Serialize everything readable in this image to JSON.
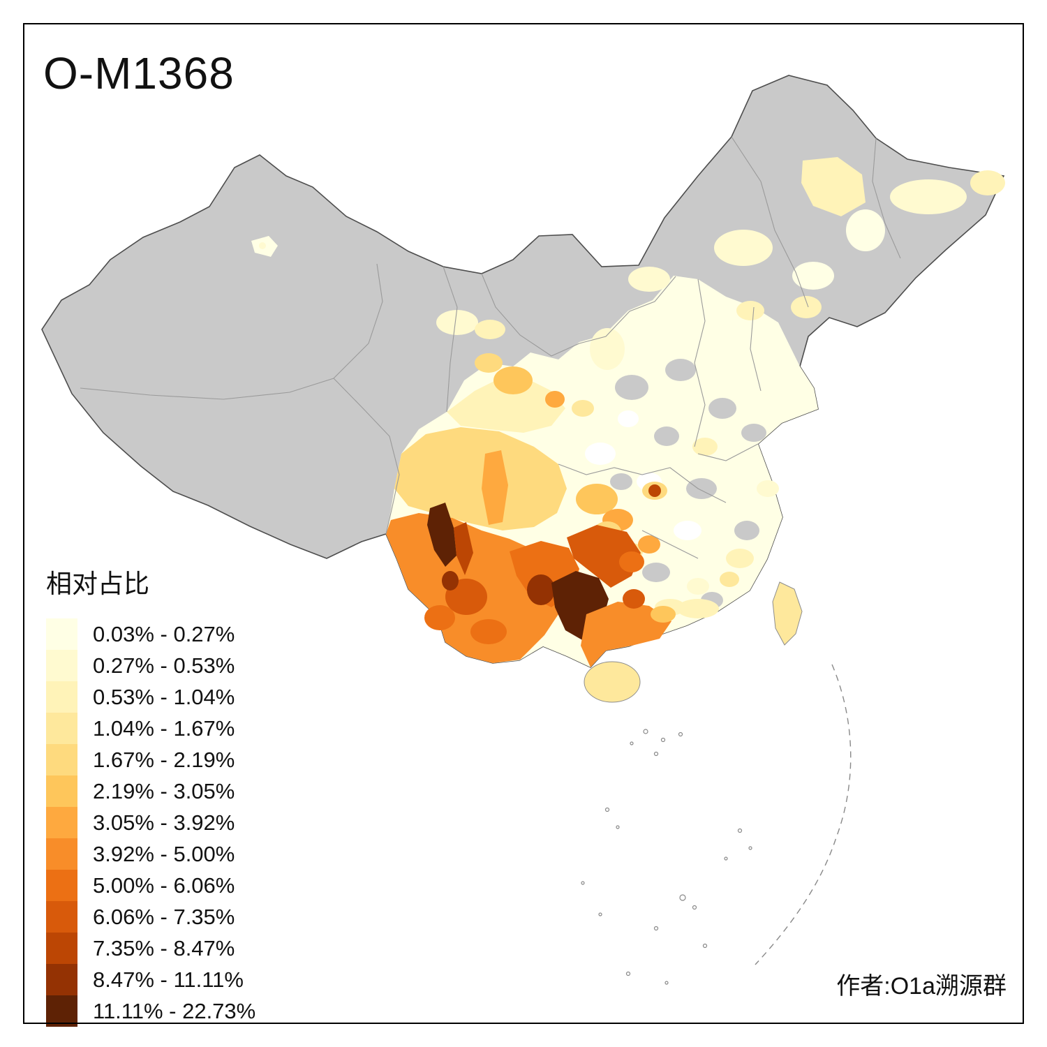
{
  "title": "O-M1368",
  "legend": {
    "title": "相对占比",
    "classes": [
      {
        "label": "0.03% - 0.27%",
        "color": "#FFFFE5"
      },
      {
        "label": "0.27% - 0.53%",
        "color": "#FFFAD0"
      },
      {
        "label": "0.53% - 1.04%",
        "color": "#FFF3B8"
      },
      {
        "label": "1.04% - 1.67%",
        "color": "#FEE89C"
      },
      {
        "label": "1.67% - 2.19%",
        "color": "#FEDA7E"
      },
      {
        "label": "2.19% - 3.05%",
        "color": "#FEC65B"
      },
      {
        "label": "3.05% - 3.92%",
        "color": "#FEA93F"
      },
      {
        "label": "3.92% - 5.00%",
        "color": "#F88D29"
      },
      {
        "label": "5.00% - 6.06%",
        "color": "#EC7014"
      },
      {
        "label": "6.06% - 7.35%",
        "color": "#D85A0B"
      },
      {
        "label": "7.35% - 8.47%",
        "color": "#BC4604"
      },
      {
        "label": "8.47% - 11.11%",
        "color": "#943203"
      },
      {
        "label": "11.11% - 22.73%",
        "color": "#5E2205"
      }
    ]
  },
  "attribution": "作者:O1a溯源群",
  "map": {
    "no_data_color": "#C9C9C9",
    "white_region_color": "#FFFFFF",
    "outline_color": "#4D4D4D",
    "province_border_color": "#9A9A9A",
    "sea_boundary_color": "#888888"
  }
}
